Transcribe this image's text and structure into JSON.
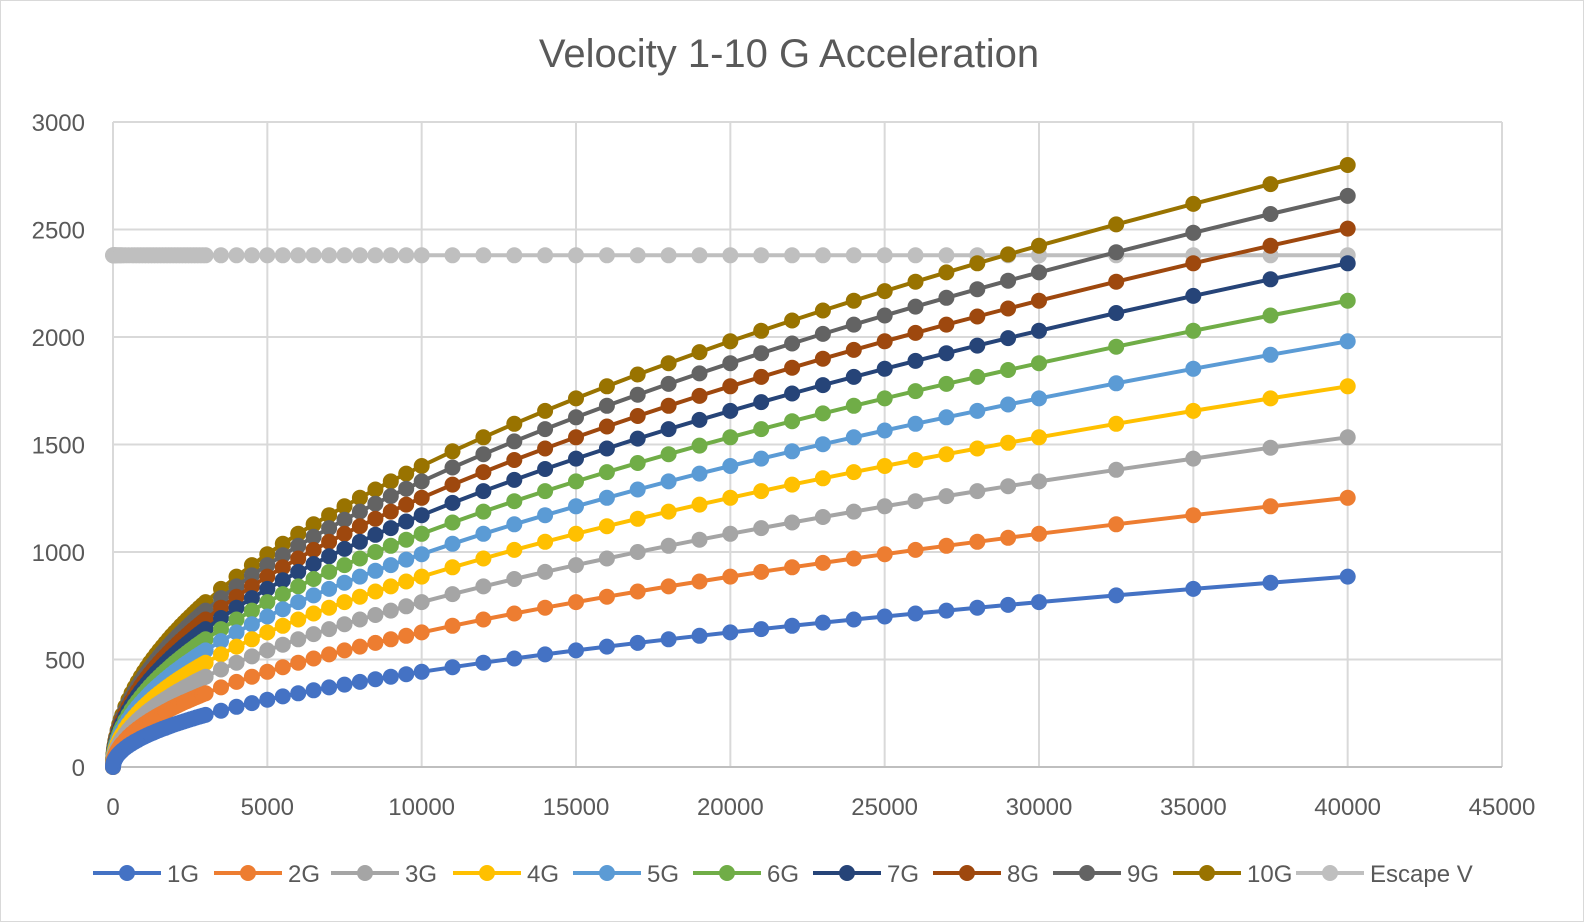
{
  "chart_data": {
    "type": "line",
    "title": "Velocity  1-10 G Acceleration",
    "xlabel": "",
    "ylabel": "",
    "xlim": [
      0,
      45000
    ],
    "ylim": [
      0,
      3000
    ],
    "x_ticks": [
      0,
      5000,
      10000,
      15000,
      20000,
      25000,
      30000,
      35000,
      40000,
      45000
    ],
    "y_ticks": [
      0,
      500,
      1000,
      1500,
      2000,
      2500,
      3000
    ],
    "grid": true,
    "legend_position": "bottom",
    "model": "v = sqrt(2 * g * n * x), g = 9.8",
    "x": [
      0,
      5,
      10,
      20,
      30,
      40,
      50,
      75,
      100,
      150,
      200,
      250,
      300,
      400,
      500,
      600,
      700,
      800,
      900,
      1000,
      1100,
      1200,
      1300,
      1400,
      1500,
      1600,
      1700,
      1800,
      1900,
      2000,
      2100,
      2200,
      2300,
      2400,
      2500,
      2600,
      2700,
      2800,
      2900,
      3000,
      3500,
      4000,
      4500,
      5000,
      5500,
      6000,
      6500,
      7000,
      7500,
      8000,
      8500,
      9000,
      9500,
      10000,
      11000,
      12000,
      13000,
      14000,
      15000,
      16000,
      17000,
      18000,
      19000,
      20000,
      21000,
      22000,
      23000,
      24000,
      25000,
      26000,
      27000,
      28000,
      29000,
      30000,
      32500,
      35000,
      37500,
      40000
    ],
    "series": [
      {
        "name": "1G",
        "color": "#4472C4",
        "g_multiple": 1
      },
      {
        "name": "2G",
        "color": "#ED7D31",
        "g_multiple": 2
      },
      {
        "name": "3G",
        "color": "#A5A5A5",
        "g_multiple": 3
      },
      {
        "name": "4G",
        "color": "#FFC000",
        "g_multiple": 4
      },
      {
        "name": "5G",
        "color": "#5B9BD5",
        "g_multiple": 5
      },
      {
        "name": "6G",
        "color": "#70AD47",
        "g_multiple": 6
      },
      {
        "name": "7G",
        "color": "#264478",
        "g_multiple": 7
      },
      {
        "name": "8G",
        "color": "#9E480E",
        "g_multiple": 8
      },
      {
        "name": "9G",
        "color": "#636363",
        "g_multiple": 9
      },
      {
        "name": "10G",
        "color": "#997300",
        "g_multiple": 10
      },
      {
        "name": "Escape V",
        "color": "#BFBFBF",
        "constant": 2380
      }
    ]
  }
}
